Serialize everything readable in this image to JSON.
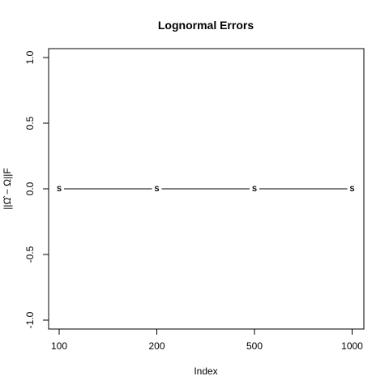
{
  "chart_data": {
    "type": "line",
    "title": "Lognormal Errors",
    "xlabel": "Index",
    "ylabel": "||Ω̂ − Ω||F",
    "categories": [
      "100",
      "200",
      "500",
      "1000"
    ],
    "ylim": [
      -1.0,
      1.0
    ],
    "yticks": [
      "-1.0",
      "-0.5",
      "0.0",
      "0.5",
      "1.0"
    ],
    "series": [
      {
        "values": [
          0,
          0,
          0,
          0
        ],
        "marker": "S"
      }
    ],
    "grid": false,
    "legend": "none"
  }
}
